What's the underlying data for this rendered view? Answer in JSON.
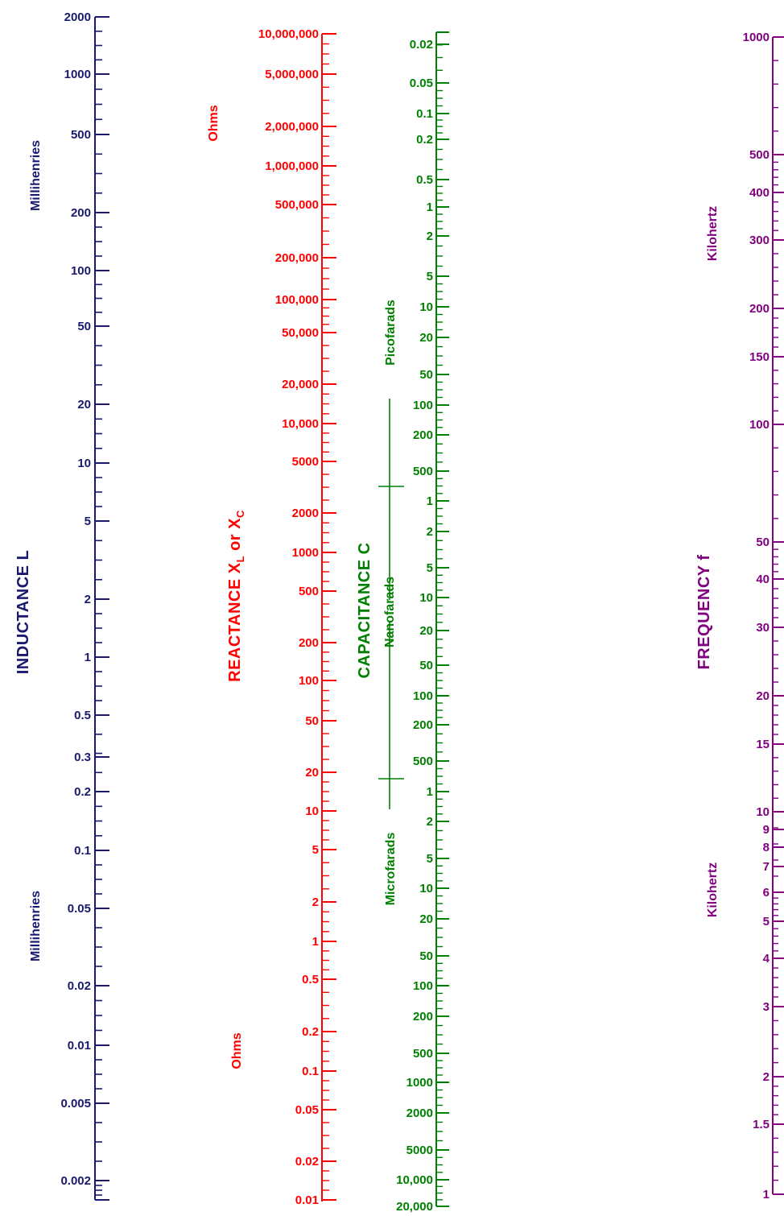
{
  "colors": {
    "inductance": "#191970",
    "reactance": "#ff0000",
    "capacitance": "#008000",
    "frequency": "#800080"
  },
  "inductance": {
    "title": "INDUCTANCE L",
    "unit_top": "Millihenries",
    "unit_bottom": "Millihenries",
    "ticks": [
      "2000",
      "1000",
      "500",
      "200",
      "100",
      "50",
      "20",
      "10",
      "5",
      "2",
      "1",
      "0.5",
      "0.3",
      "0.2",
      "0.1",
      "0.05",
      "0.02",
      "0.01",
      "0.005",
      "0.002"
    ]
  },
  "reactance": {
    "title_main": "REACTANCE  X",
    "sub_l": "L",
    "title_or": " or  X",
    "sub_c": "C",
    "unit_top": "Ohms",
    "unit_bottom": "Ohms",
    "ticks": [
      "10,000,000",
      "5,000,000",
      "2,000,000",
      "1,000,000",
      "500,000",
      "200,000",
      "100,000",
      "50,000",
      "20,000",
      "10,000",
      "5000",
      "2000",
      "1000",
      "500",
      "200",
      "100",
      "50",
      "20",
      "10",
      "5",
      "2",
      "1",
      "0.5",
      "0.2",
      "0.1",
      "0.05",
      "0.02",
      "0.01"
    ]
  },
  "capacitance": {
    "title": "CAPACITANCE C",
    "unit_pico": "Picofarads",
    "unit_nano": "Nanofarads",
    "unit_micro": "Microfarads",
    "ticks": [
      "0.02",
      "0.05",
      "0.1",
      "0.2",
      "0.5",
      "1",
      "2",
      "5",
      "10",
      "20",
      "50",
      "100",
      "200",
      "500",
      "1",
      "2",
      "5",
      "10",
      "20",
      "50",
      "100",
      "200",
      "500",
      "1",
      "2",
      "5",
      "10",
      "20",
      "50",
      "100",
      "200",
      "500",
      "1000",
      "2000",
      "5000",
      "10,000",
      "20,000"
    ]
  },
  "frequency": {
    "title": "FREQUENCY f",
    "unit_top": "Kilohertz",
    "unit_bottom": "Kilohertz",
    "ticks": [
      "1000",
      "500",
      "400",
      "300",
      "200",
      "150",
      "100",
      "50",
      "40",
      "30",
      "20",
      "15",
      "10",
      "9",
      "8",
      "7",
      "6",
      "5",
      "4",
      "3",
      "2",
      "1.5",
      "1"
    ]
  }
}
